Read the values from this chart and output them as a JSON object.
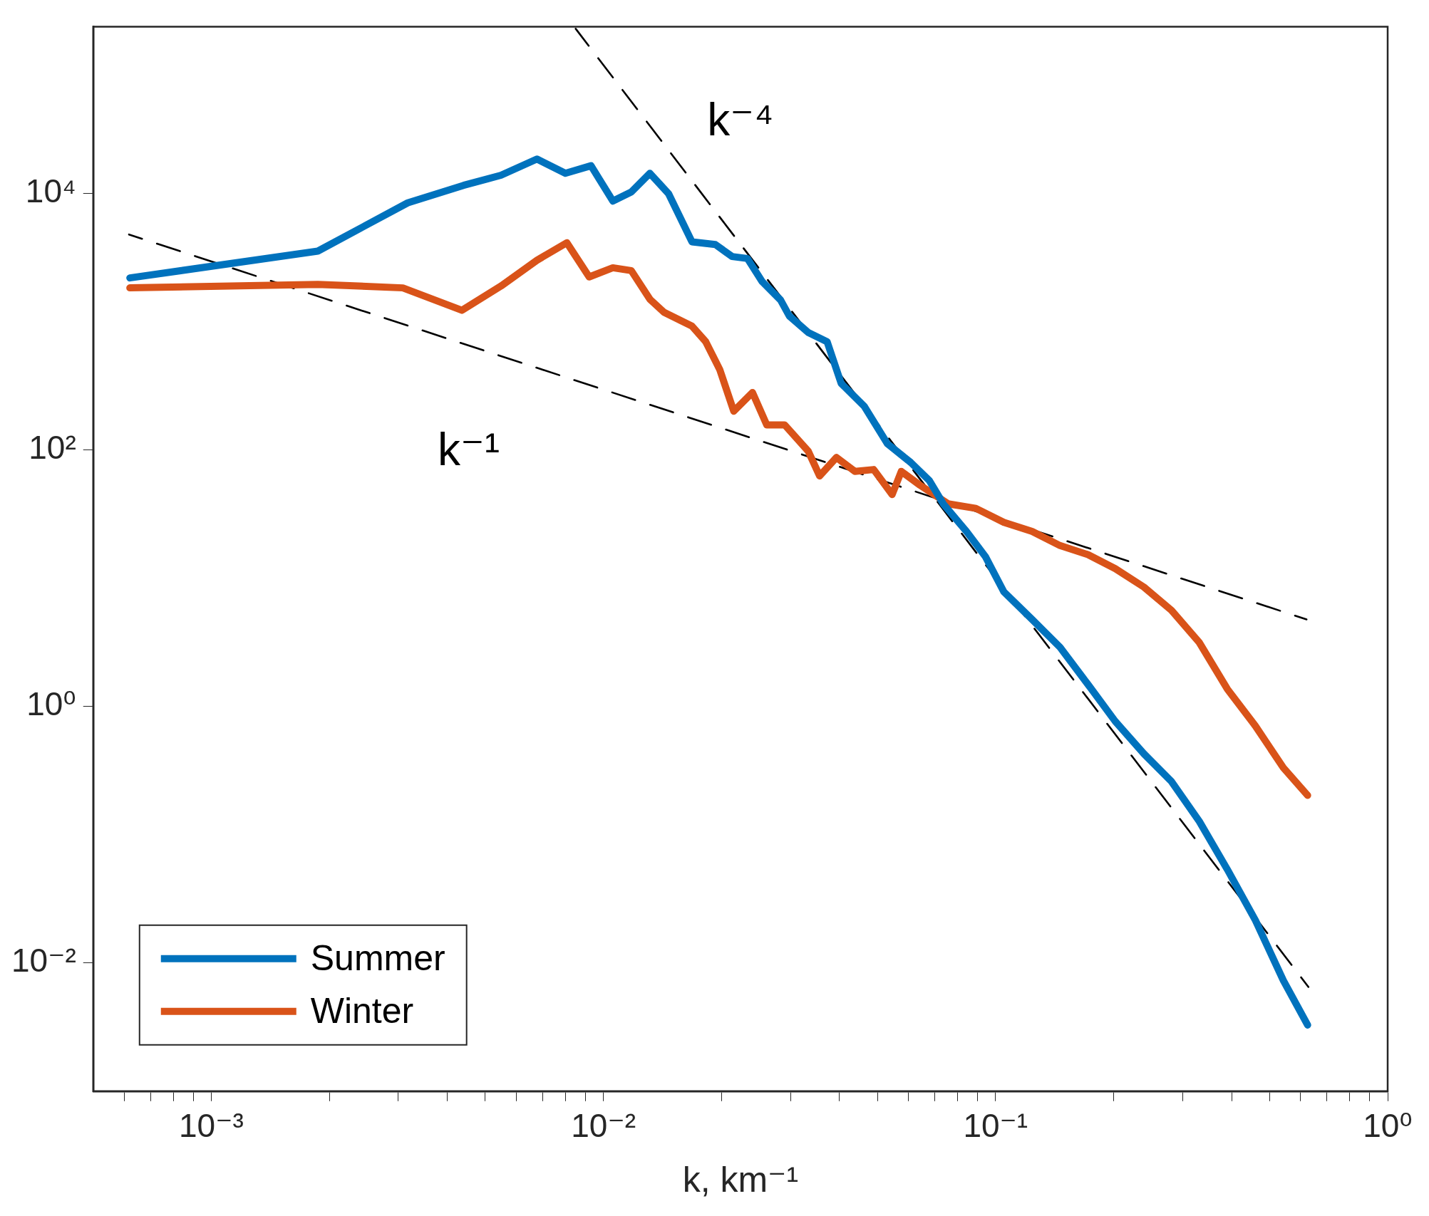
{
  "chart_data": {
    "type": "line",
    "xlabel": "k, km⁻¹",
    "log": "xy",
    "grid": false,
    "marker": "none",
    "legend": "bottom left",
    "xlim": [
      0.0005,
      1
    ],
    "ylim": [
      0.001,
      200000
    ],
    "xticks": [
      {
        "value": 0.0006,
        "label": null
      },
      {
        "value": 0.0007,
        "label": null
      },
      {
        "value": 0.0008,
        "label": null
      },
      {
        "value": 0.0009,
        "label": null
      },
      {
        "value": 0.001,
        "label": "10⁻³"
      },
      {
        "value": 0.002,
        "label": null
      },
      {
        "value": 0.003,
        "label": null
      },
      {
        "value": 0.004,
        "label": null
      },
      {
        "value": 0.005,
        "label": null
      },
      {
        "value": 0.006,
        "label": null
      },
      {
        "value": 0.007,
        "label": null
      },
      {
        "value": 0.008,
        "label": null
      },
      {
        "value": 0.009,
        "label": null
      },
      {
        "value": 0.01,
        "label": "10⁻²"
      },
      {
        "value": 0.02,
        "label": null
      },
      {
        "value": 0.03,
        "label": null
      },
      {
        "value": 0.04,
        "label": null
      },
      {
        "value": 0.05,
        "label": null
      },
      {
        "value": 0.06,
        "label": null
      },
      {
        "value": 0.07,
        "label": null
      },
      {
        "value": 0.08,
        "label": null
      },
      {
        "value": 0.09,
        "label": null
      },
      {
        "value": 0.1,
        "label": "10⁻¹"
      },
      {
        "value": 0.2,
        "label": null
      },
      {
        "value": 0.3,
        "label": null
      },
      {
        "value": 0.4,
        "label": null
      },
      {
        "value": 0.5,
        "label": null
      },
      {
        "value": 0.6,
        "label": null
      },
      {
        "value": 0.7,
        "label": null
      },
      {
        "value": 0.8,
        "label": null
      },
      {
        "value": 0.9,
        "label": null
      },
      {
        "value": 1,
        "label": "10⁰"
      }
    ],
    "yticks": [
      {
        "value": 0.01,
        "label": "10⁻²"
      },
      {
        "value": 1,
        "label": "10⁰"
      },
      {
        "value": 100,
        "label": "10²"
      },
      {
        "value": 10000,
        "label": "10⁴"
      }
    ],
    "annotations": [
      "k⁻⁴",
      "k⁻¹"
    ],
    "series": [
      {
        "name": "Summer",
        "color": "#0072bd",
        "line_style": "solid",
        "x": [
          0.00062,
          0.00187,
          0.00317,
          0.0044,
          0.00548,
          0.00677,
          0.008,
          0.0093,
          0.01057,
          0.01178,
          0.01314,
          0.01466,
          0.01682,
          0.0193,
          0.0213,
          0.0233,
          0.0254,
          0.0283,
          0.0298,
          0.0333,
          0.0372,
          0.0404,
          0.0463,
          0.053,
          0.0608,
          0.0678,
          0.0736,
          0.0843,
          0.0942,
          0.105,
          0.124,
          0.146,
          0.172,
          0.202,
          0.239,
          0.281,
          0.331,
          0.39,
          0.46,
          0.542,
          0.625
        ],
        "values": [
          2200,
          3560,
          8470,
          11600,
          13900,
          18600,
          14400,
          16500,
          8750,
          10300,
          14400,
          10000,
          4210,
          4010,
          3230,
          3120,
          2060,
          1480,
          1110,
          826,
          700,
          331,
          219,
          112,
          80,
          57.8,
          38,
          23.2,
          14.8,
          7.85,
          4.77,
          2.9,
          1.49,
          0.766,
          0.428,
          0.26,
          0.127,
          0.0537,
          0.0215,
          0.0073,
          0.00328
        ]
      },
      {
        "name": "Winter",
        "color": "#d95319",
        "line_style": "solid",
        "x": [
          0.00062,
          0.00187,
          0.00308,
          0.00436,
          0.00548,
          0.00677,
          0.00807,
          0.0092,
          0.01057,
          0.01178,
          0.01314,
          0.01426,
          0.01682,
          0.01824,
          0.0198,
          0.0215,
          0.024,
          0.0261,
          0.029,
          0.0333,
          0.0356,
          0.0393,
          0.0438,
          0.0489,
          0.0545,
          0.0575,
          0.0642,
          0.0757,
          0.0891,
          0.105,
          0.124,
          0.146,
          0.172,
          0.202,
          0.239,
          0.281,
          0.331,
          0.39,
          0.46,
          0.542,
          0.625
        ],
        "values": [
          1840,
          1960,
          1840,
          1230,
          1900,
          3020,
          4140,
          2240,
          2640,
          2510,
          1500,
          1190,
          927,
          700,
          425,
          201,
          281,
          157,
          157,
          98,
          62.8,
          87.5,
          68.2,
          70.5,
          45,
          68.2,
          53.2,
          38.1,
          35.1,
          27.3,
          23.2,
          18,
          15.3,
          11.9,
          8.54,
          5.63,
          3.15,
          1.37,
          0.705,
          0.333,
          0.203
        ]
      },
      {
        "type": "line",
        "color": "#000000",
        "line_style": "dashed",
        "x": [
          0.000617,
          0.621
        ],
        "values": [
          4800,
          4.78
        ]
      },
      {
        "type": "line",
        "color": "#000000",
        "line_style": "dashed",
        "x": [
          0.0085,
          0.628
        ],
        "values": [
          193000,
          0.0065
        ]
      }
    ]
  }
}
